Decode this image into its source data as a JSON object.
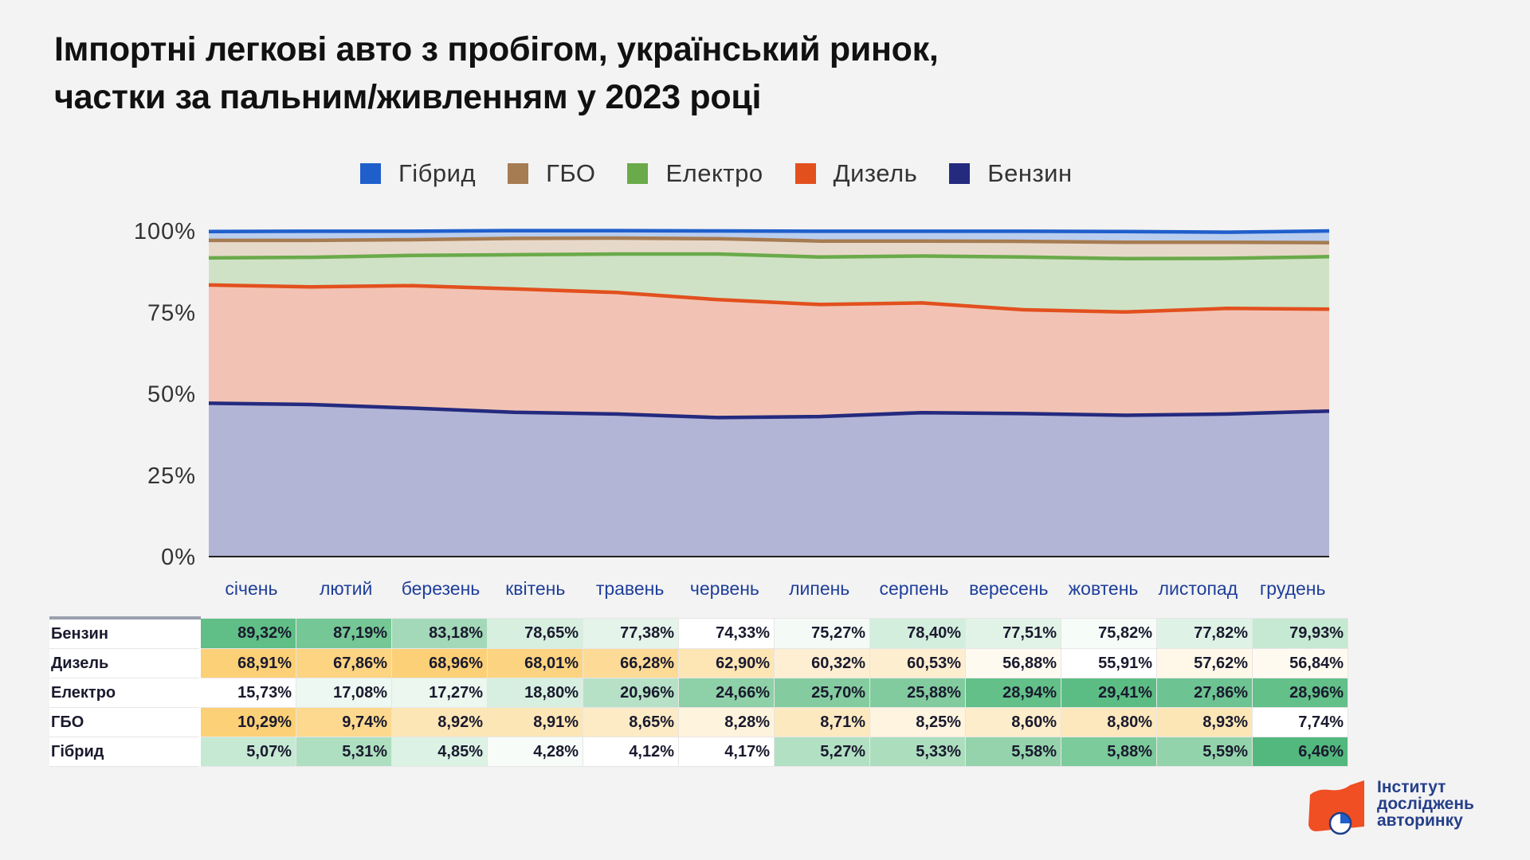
{
  "title": {
    "line1": "Імпортні легкові авто з пробігом, український ринок,",
    "line2": "частки за пальним/живленням у 2023 році"
  },
  "legend": [
    {
      "label": "Гібрид",
      "color": "#1f5fcc"
    },
    {
      "label": "ГБО",
      "color": "#a67c52"
    },
    {
      "label": "Електро",
      "color": "#6aaa4a"
    },
    {
      "label": "Дизель",
      "color": "#e2501e"
    },
    {
      "label": "Бензин",
      "color": "#242a7e"
    }
  ],
  "chart_data": {
    "type": "area",
    "stacked": true,
    "categories": [
      "січень",
      "лютий",
      "березень",
      "квітень",
      "травень",
      "червень",
      "липень",
      "серпень",
      "вересень",
      "жовтень",
      "листопад",
      "грудень"
    ],
    "ylim": [
      0,
      100
    ],
    "yticks": [
      "0%",
      "25%",
      "50%",
      "75%",
      "100%"
    ],
    "grid": true,
    "legend_position": "top",
    "series": [
      {
        "name": "Бензин",
        "values": [
          47.1,
          46.7,
          45.6,
          44.3,
          43.8,
          42.7,
          43.0,
          44.2,
          43.9,
          43.4,
          43.8,
          44.7
        ]
      },
      {
        "name": "Дизель",
        "values": [
          36.3,
          36.1,
          37.6,
          37.9,
          37.3,
          36.2,
          34.4,
          33.7,
          31.9,
          31.7,
          32.4,
          31.3
        ]
      },
      {
        "name": "Електро",
        "values": [
          8.3,
          9.1,
          9.3,
          10.5,
          11.8,
          14.0,
          14.6,
          14.4,
          16.2,
          16.4,
          15.4,
          16.1
        ]
      },
      {
        "name": "ГБО",
        "values": [
          5.4,
          5.2,
          4.8,
          5.0,
          4.9,
          4.7,
          4.9,
          4.6,
          4.8,
          5.0,
          4.9,
          4.3
        ]
      },
      {
        "name": "Гібрид",
        "values": [
          2.7,
          2.8,
          2.6,
          2.4,
          2.3,
          2.4,
          3.0,
          3.0,
          3.1,
          3.3,
          3.1,
          3.6
        ]
      }
    ],
    "colors": {
      "Бензин": {
        "line": "#242a7e",
        "fill": "#b3b5d6"
      },
      "Дизель": {
        "line": "#e2501e",
        "fill": "#f2c3b4"
      },
      "Електро": {
        "line": "#6aaa4a",
        "fill": "#cfe2c5"
      },
      "ГБО": {
        "line": "#a67c52",
        "fill": "#e7d9ca"
      },
      "Гібрид": {
        "line": "#1f5fcc",
        "fill": "#b9cdee"
      }
    }
  },
  "table": {
    "rows": [
      {
        "label": "Бензин",
        "values": [
          "89,32%",
          "87,19%",
          "83,18%",
          "78,65%",
          "77,38%",
          "74,33%",
          "75,27%",
          "78,40%",
          "77,51%",
          "75,82%",
          "77,82%",
          "79,93%"
        ],
        "colors": [
          "#5fbf86",
          "#75c795",
          "#a3d9b8",
          "#d6efdf",
          "#e4f4ea",
          "#ffffff",
          "#f4fbf6",
          "#d3eedd",
          "#e1f3e7",
          "#f6fcf8",
          "#dff2e6",
          "#c5e9d2"
        ]
      },
      {
        "label": "Дизель",
        "values": [
          "68,91%",
          "67,86%",
          "68,96%",
          "68,01%",
          "66,28%",
          "62,90%",
          "60,32%",
          "60,53%",
          "56,88%",
          "55,91%",
          "57,62%",
          "56,84%"
        ],
        "colors": [
          "#fcd076",
          "#fcd482",
          "#fcd076",
          "#fcd481",
          "#fddb96",
          "#fde5b4",
          "#feefd2",
          "#feeed0",
          "#fffaf0",
          "#ffffff",
          "#fff8e8",
          "#fffaf0"
        ]
      },
      {
        "label": "Електро",
        "values": [
          "15,73%",
          "17,08%",
          "17,27%",
          "18,80%",
          "20,96%",
          "24,66%",
          "25,70%",
          "25,88%",
          "28,94%",
          "29,41%",
          "27,86%",
          "28,96%"
        ],
        "colors": [
          "#ffffff",
          "#eef8f2",
          "#ebf7ef",
          "#d7efe0",
          "#b6e1c6",
          "#8ed0a7",
          "#84cc9f",
          "#82cb9e",
          "#62c088",
          "#5cbd84",
          "#6dc391",
          "#62c088"
        ]
      },
      {
        "label": "ГБО",
        "values": [
          "10,29%",
          "9,74%",
          "8,92%",
          "8,91%",
          "8,65%",
          "8,28%",
          "8,71%",
          "8,25%",
          "8,60%",
          "8,80%",
          "8,93%",
          "7,74%"
        ],
        "colors": [
          "#fcd076",
          "#fcd98e",
          "#fde6b6",
          "#fde6b6",
          "#fdebc6",
          "#fef3dc",
          "#fde9c0",
          "#fef4df",
          "#feedca",
          "#fde8bd",
          "#fde6b6",
          "#ffffff"
        ]
      },
      {
        "label": "Гібрид",
        "values": [
          "5,07%",
          "5,31%",
          "4,85%",
          "4,28%",
          "4,12%",
          "4,17%",
          "5,27%",
          "5,33%",
          "5,58%",
          "5,88%",
          "5,59%",
          "6,46%"
        ],
        "colors": [
          "#c6e9d3",
          "#aedfc0",
          "#dcf2e4",
          "#f8fcf9",
          "#ffffff",
          "#ffffff",
          "#b2e0c3",
          "#acdebe",
          "#94d3ac",
          "#7ccb9b",
          "#93d3ab",
          "#52b87d"
        ]
      }
    ]
  },
  "logo": {
    "line1": "Інститут",
    "line2": "досліджень",
    "line3": "авторинку",
    "color": "#f04e23"
  }
}
